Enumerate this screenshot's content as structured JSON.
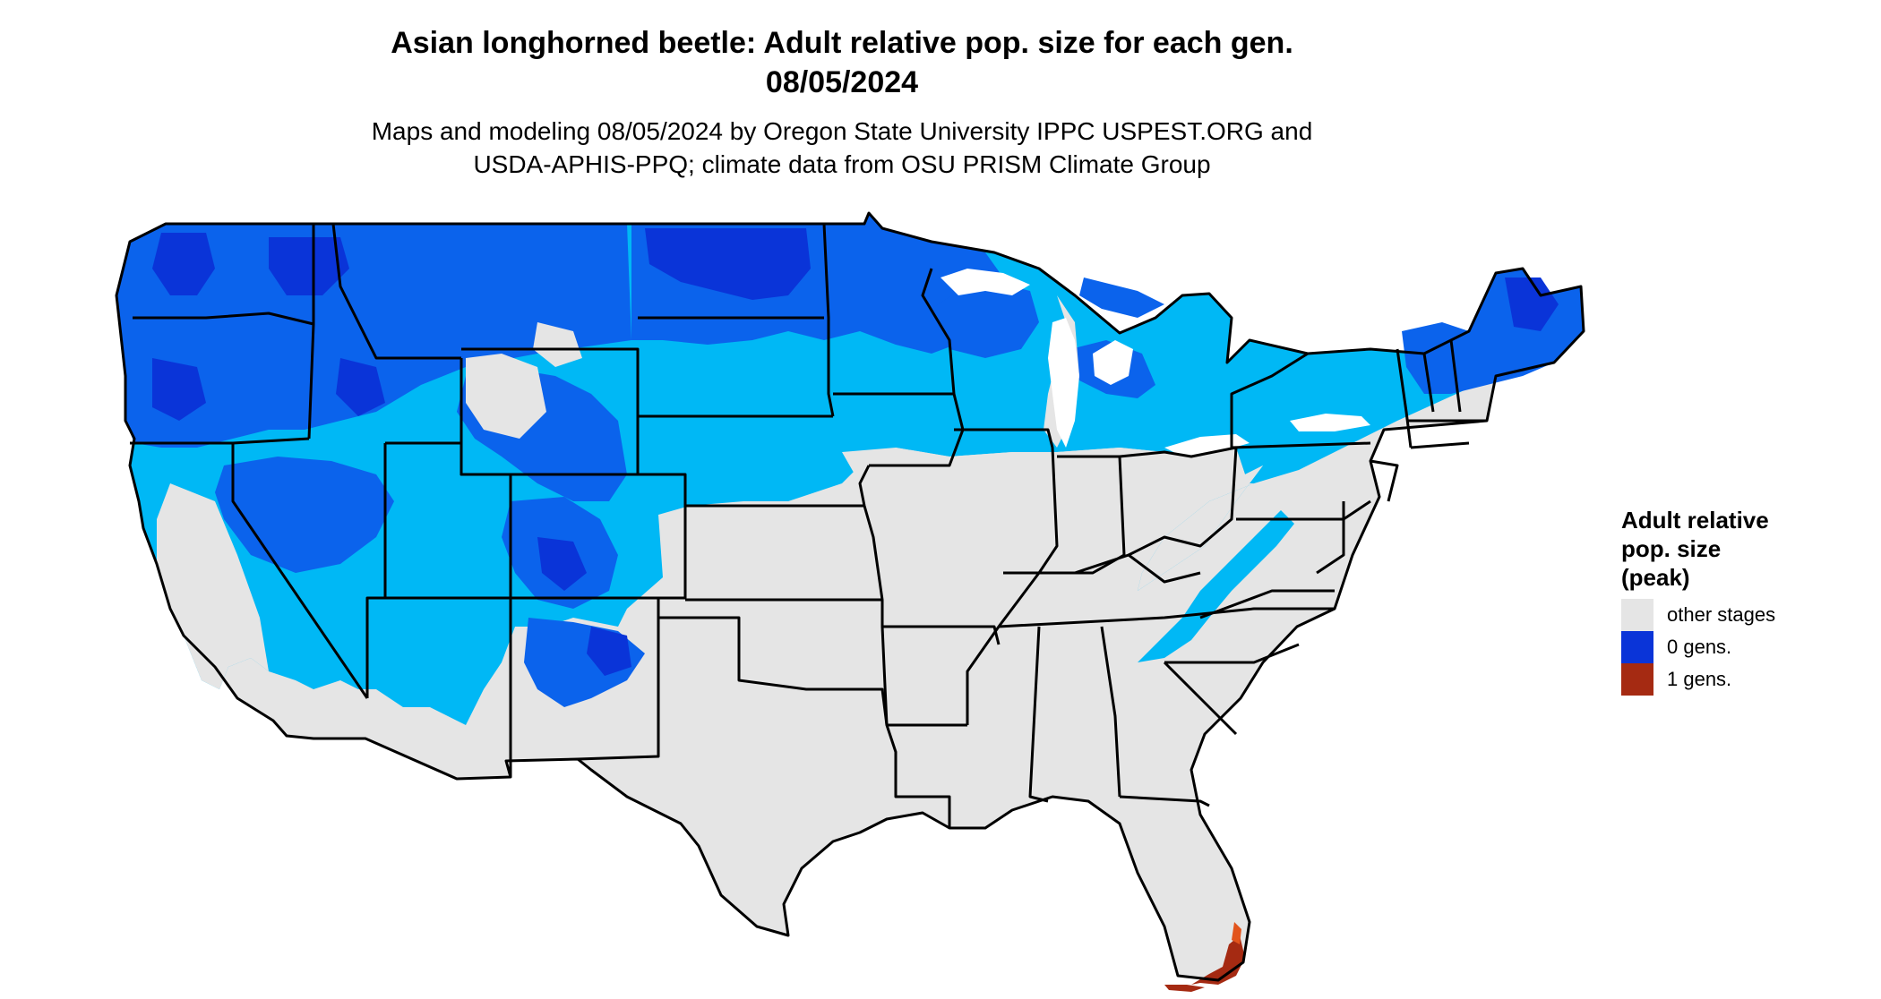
{
  "title": {
    "line1": "Asian longhorned beetle: Adult relative pop. size for each gen.",
    "line2": "08/05/2024"
  },
  "subtitle": {
    "line1": "Maps and modeling 08/05/2024 by Oregon State University IPPC USPEST.ORG and",
    "line2": "USDA-APHIS-PPQ; climate data from OSU PRISM Climate Group"
  },
  "legend": {
    "title_line1": "Adult relative",
    "title_line2": "pop. size",
    "title_line3": "(peak)",
    "items": [
      {
        "label": "other stages",
        "color": "#e5e5e5"
      },
      {
        "label": "0 gens.",
        "color": "#0a34d8"
      },
      {
        "label": "1 gens.",
        "color": "#a52a12"
      }
    ]
  },
  "map_colors": {
    "other_stages": "#e5e5e5",
    "zero_gen_dark": "#0a34d8",
    "zero_gen_mid": "#0b63ec",
    "zero_gen_light": "#00b8f5",
    "one_gen": "#a52a12",
    "one_gen_light": "#e2541c",
    "state_border": "#000000"
  }
}
